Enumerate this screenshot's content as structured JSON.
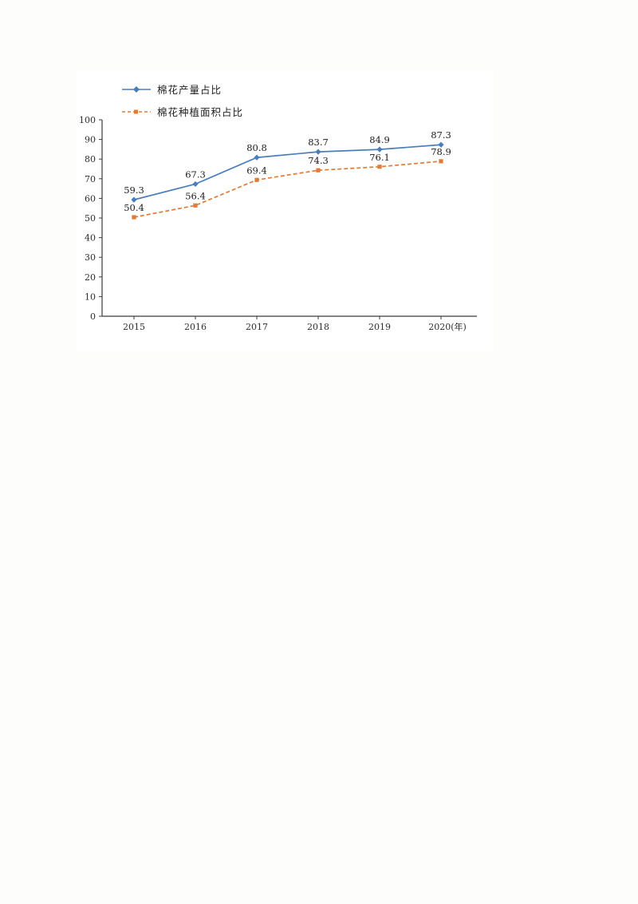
{
  "chart_data": {
    "type": "line",
    "title": "",
    "xlabel": "",
    "ylabel": "",
    "categories": [
      "2015",
      "2016",
      "2017",
      "2018",
      "2019",
      "2020"
    ],
    "x_axis_note": "(年)",
    "series": [
      {
        "name": "棉花产量占比",
        "color": "#4a7ebb",
        "line_style": "solid",
        "marker": "diamond",
        "values": [
          59.3,
          67.3,
          80.8,
          83.7,
          84.9,
          87.3
        ]
      },
      {
        "name": "棉花种植面积占比",
        "color": "#e07b38",
        "line_style": "dashed",
        "marker": "square",
        "values": [
          50.4,
          56.4,
          69.4,
          74.3,
          76.1,
          78.9
        ]
      }
    ],
    "ylim": [
      0,
      100
    ],
    "ytick_step": 10,
    "grid": false,
    "legend_position": "top-left",
    "axis_color": "#3a3a3a"
  }
}
